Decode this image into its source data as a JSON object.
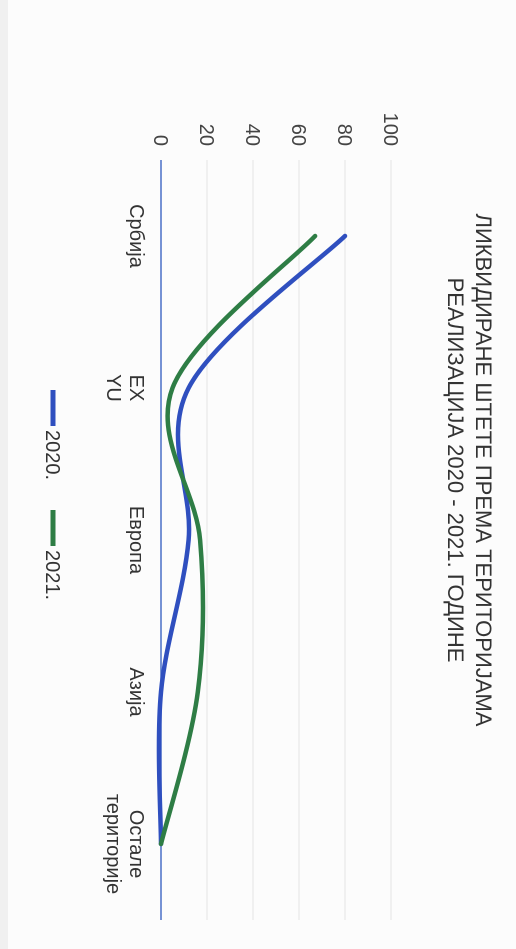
{
  "chart_data": {
    "type": "line",
    "title": "ЛИКВИДИРАНЕ ШТЕТЕ  ПРЕМА ТЕРИТОРИЈАМА",
    "subtitle": "РЕАЛИЗАЦИЈА 2020 - 2021. ГОДИНЕ",
    "categories": [
      "Србија",
      "EX YU",
      "Европа",
      "Азија",
      "Остале територије"
    ],
    "ylim": [
      0,
      100
    ],
    "yticks": [
      0,
      20,
      40,
      60,
      80,
      100
    ],
    "smooth": true,
    "grid": true,
    "legend_position": "bottom",
    "rotation": "rotated 90 degrees clockwise",
    "series": [
      {
        "name": "2020.",
        "color": "#2f4fbf",
        "values": [
          80,
          12,
          12,
          0,
          0
        ]
      },
      {
        "name": "2021.",
        "color": "#2e7d45",
        "values": [
          67,
          5,
          17,
          16,
          0
        ]
      }
    ]
  }
}
